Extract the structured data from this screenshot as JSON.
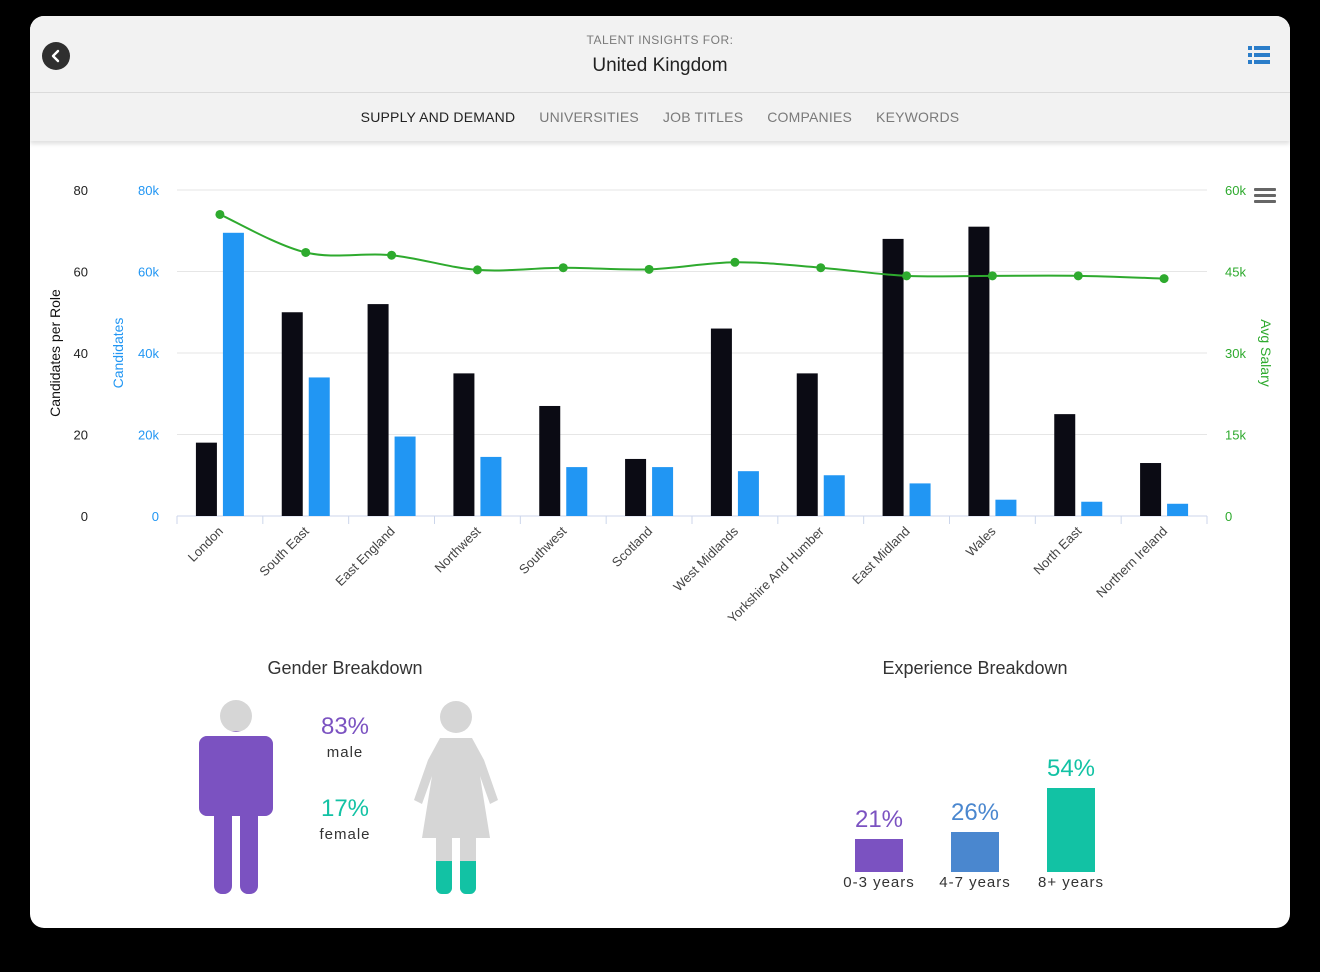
{
  "header": {
    "subtitle": "TALENT INSIGHTS FOR:",
    "title": "United Kingdom"
  },
  "tabs": [
    {
      "label": "SUPPLY AND DEMAND",
      "active": true
    },
    {
      "label": "UNIVERSITIES",
      "active": false
    },
    {
      "label": "JOB TITLES",
      "active": false
    },
    {
      "label": "COMPANIES",
      "active": false
    },
    {
      "label": "KEYWORDS",
      "active": false
    }
  ],
  "icons": {
    "back": "chevron-left-icon",
    "view": "list-view-icon",
    "chart_menu": "hamburger-menu-icon"
  },
  "colors": {
    "candidates_per_role": "#0b0b14",
    "candidates": "#2196f3",
    "avg_salary": "#2eaa2e",
    "male": "#7b52c1",
    "female": "#12c2a4",
    "exp_0_3": "#7b52c1",
    "exp_4_7": "#4a87cf",
    "exp_8p": "#12c2a4",
    "figure_grey": "#d6d6d6"
  },
  "chart_data": {
    "type": "bar",
    "categories": [
      "London",
      "South East",
      "East England",
      "Northwest",
      "Southwest",
      "Scotland",
      "West Midlands",
      "Yorkshire And Humber",
      "East Midland",
      "Wales",
      "North East",
      "Northern Ireland"
    ],
    "series": [
      {
        "name": "Candidates per Role",
        "type": "bar",
        "axis": "left1",
        "values": [
          18,
          50,
          52,
          35,
          27,
          14,
          46,
          35,
          68,
          71,
          25,
          13
        ]
      },
      {
        "name": "Candidates",
        "type": "bar",
        "axis": "left2",
        "values": [
          69500,
          34000,
          19500,
          14500,
          12000,
          12000,
          11000,
          10000,
          8000,
          4000,
          3500,
          3000
        ]
      },
      {
        "name": "Avg Salary",
        "type": "line",
        "axis": "right",
        "values": [
          55500,
          48500,
          48000,
          45300,
          45700,
          45400,
          46700,
          45700,
          44200,
          44200,
          44200,
          43700
        ]
      }
    ],
    "axes": {
      "left1": {
        "label": "Candidates per Role",
        "min": 0,
        "max": 80,
        "ticks": [
          "0",
          "20",
          "40",
          "60",
          "80"
        ]
      },
      "left2": {
        "label": "Candidates",
        "min": 0,
        "max": 80000,
        "ticks": [
          "0",
          "20k",
          "40k",
          "60k",
          "80k"
        ]
      },
      "right": {
        "label": "Avg Salary",
        "min": 0,
        "max": 60000,
        "ticks": [
          "0",
          "15k",
          "30k",
          "45k",
          "60k"
        ]
      }
    },
    "grid": true
  },
  "gender": {
    "title": "Gender Breakdown",
    "male_pct": "83%",
    "male_label": "male",
    "female_pct": "17%",
    "female_label": "female",
    "male_fraction": 0.83,
    "female_fraction": 0.17
  },
  "experience": {
    "title": "Experience Breakdown",
    "bars": [
      {
        "pct": "21%",
        "label": "0-3 years",
        "value": 21
      },
      {
        "pct": "26%",
        "label": "4-7 years",
        "value": 26
      },
      {
        "pct": "54%",
        "label": "8+ years",
        "value": 54
      }
    ]
  }
}
